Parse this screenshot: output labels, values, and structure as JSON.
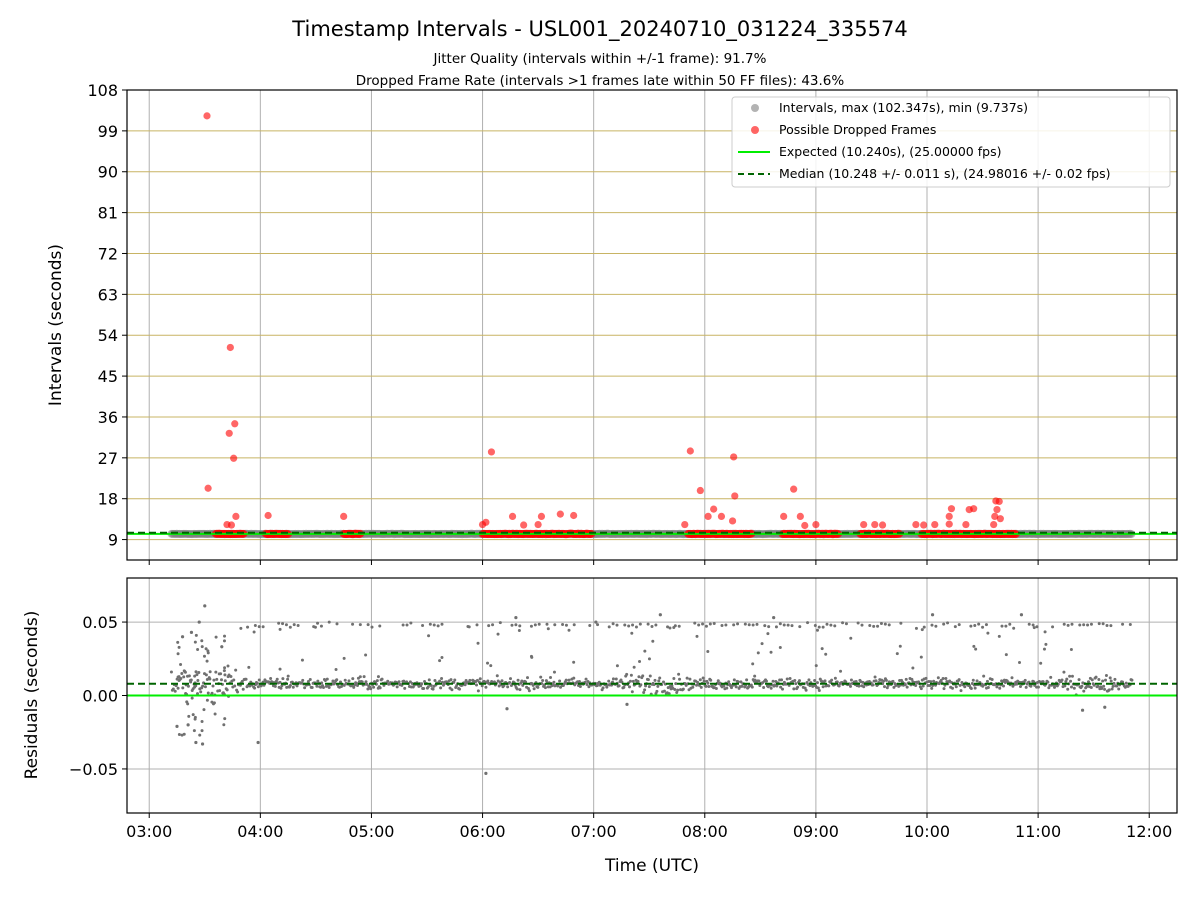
{
  "chart_data": [
    {
      "type": "scatter",
      "title": "Timestamp Intervals - USL001_20240710_031224_335574",
      "subtitle_1": "Jitter Quality (intervals within +/-1 frame): 91.7%",
      "subtitle_2": "Dropped Frame Rate (intervals >1 frames late within 50 FF files): 43.6%",
      "xlabel": "",
      "ylabel": "Intervals (seconds)",
      "x_unit": "hours UTC",
      "xlim": [
        2.8,
        12.25
      ],
      "ylim": [
        4.5,
        108
      ],
      "yticks": [
        9,
        18,
        27,
        36,
        45,
        54,
        63,
        72,
        81,
        90,
        99,
        108
      ],
      "ytick_labels": [
        "9",
        "18",
        "27",
        "36",
        "45",
        "54",
        "63",
        "72",
        "81",
        "90",
        "99",
        "108"
      ],
      "legend_position": "upper right",
      "colors": {
        "intervals": "#808080",
        "dropped": "#ff0000",
        "expected": "#00ee00",
        "median": "#006400",
        "grid_y": "#c8b464",
        "grid_x": "#b0b0b0"
      },
      "intervals_range": [
        3.2,
        11.85
      ],
      "intervals_value": 10.24,
      "expected_value": 10.24,
      "median_value": 10.248,
      "legend": [
        "Intervals, max (102.347s), min (9.737s)",
        "Possible Dropped Frames",
        "Expected (10.240s), (25.00000 fps)",
        "Median (10.248 +/- 0.011 s), (24.98016 +/- 0.02 fps)"
      ],
      "dropped_segments": [
        [
          3.6,
          3.85
        ],
        [
          4.05,
          4.25
        ],
        [
          4.75,
          4.9
        ],
        [
          6.0,
          6.98
        ],
        [
          7.85,
          8.42
        ],
        [
          8.7,
          9.2
        ],
        [
          9.4,
          9.75
        ],
        [
          9.95,
          10.8
        ]
      ],
      "dropped_points": [
        [
          3.52,
          102.3
        ],
        [
          3.53,
          20.3
        ],
        [
          3.73,
          51.3
        ],
        [
          3.72,
          32.4
        ],
        [
          3.77,
          34.5
        ],
        [
          3.76,
          26.9
        ],
        [
          3.7,
          12.3
        ],
        [
          3.78,
          14.1
        ],
        [
          3.74,
          12.2
        ],
        [
          4.07,
          14.3
        ],
        [
          4.75,
          14.1
        ],
        [
          6.0,
          12.3
        ],
        [
          6.03,
          12.8
        ],
        [
          6.08,
          28.3
        ],
        [
          6.27,
          14.1
        ],
        [
          6.37,
          12.2
        ],
        [
          6.5,
          12.3
        ],
        [
          6.53,
          14.1
        ],
        [
          6.7,
          14.6
        ],
        [
          6.82,
          14.3
        ],
        [
          7.82,
          12.3
        ],
        [
          7.87,
          28.5
        ],
        [
          7.96,
          19.8
        ],
        [
          8.03,
          14.1
        ],
        [
          8.08,
          15.7
        ],
        [
          8.15,
          14.1
        ],
        [
          8.26,
          27.2
        ],
        [
          8.27,
          18.6
        ],
        [
          8.25,
          13.1
        ],
        [
          8.71,
          14.1
        ],
        [
          8.8,
          20.1
        ],
        [
          8.86,
          14.1
        ],
        [
          8.9,
          12.1
        ],
        [
          9.0,
          12.3
        ],
        [
          9.43,
          12.3
        ],
        [
          9.53,
          12.3
        ],
        [
          9.6,
          12.2
        ],
        [
          9.9,
          12.3
        ],
        [
          9.97,
          12.2
        ],
        [
          10.07,
          12.3
        ],
        [
          10.2,
          14.1
        ],
        [
          10.22,
          15.8
        ],
        [
          10.2,
          12.4
        ],
        [
          10.38,
          15.6
        ],
        [
          10.42,
          15.8
        ],
        [
          10.35,
          12.3
        ],
        [
          10.62,
          17.5
        ],
        [
          10.65,
          17.4
        ],
        [
          10.63,
          15.6
        ],
        [
          10.61,
          14.1
        ],
        [
          10.66,
          13.6
        ],
        [
          10.6,
          12.3
        ]
      ]
    },
    {
      "type": "scatter",
      "xlabel": "Time (UTC)",
      "ylabel": "Residuals (seconds)",
      "x_unit": "hours UTC",
      "xlim": [
        2.8,
        12.25
      ],
      "ylim": [
        -0.08,
        0.08
      ],
      "xticks": [
        3,
        4,
        5,
        6,
        7,
        8,
        9,
        10,
        11,
        12
      ],
      "xtick_labels": [
        "03:00",
        "04:00",
        "05:00",
        "06:00",
        "07:00",
        "08:00",
        "09:00",
        "10:00",
        "11:00",
        "12:00"
      ],
      "yticks": [
        -0.05,
        0.0,
        0.05
      ],
      "ytick_labels": [
        "−0.05",
        "0.00",
        "0.05"
      ],
      "expected_residual": 0.0,
      "median_residual": 0.008,
      "main_band": 0.008,
      "upper_band": 0.048,
      "outlier_points": [
        [
          3.5,
          0.061
        ],
        [
          3.42,
          -0.032
        ],
        [
          3.48,
          -0.033
        ],
        [
          3.98,
          -0.032
        ],
        [
          6.03,
          -0.053
        ],
        [
          3.3,
          0.04
        ],
        [
          3.38,
          0.043
        ],
        [
          3.45,
          0.05
        ],
        [
          3.35,
          -0.02
        ],
        [
          3.25,
          -0.021
        ],
        [
          6.22,
          -0.009
        ],
        [
          7.3,
          -0.006
        ],
        [
          7.6,
          0.055
        ],
        [
          10.05,
          0.055
        ],
        [
          10.85,
          0.055
        ],
        [
          11.4,
          -0.01
        ],
        [
          11.6,
          -0.008
        ],
        [
          8.62,
          0.053
        ],
        [
          6.3,
          0.053
        ],
        [
          7.02,
          0.05
        ]
      ]
    }
  ]
}
